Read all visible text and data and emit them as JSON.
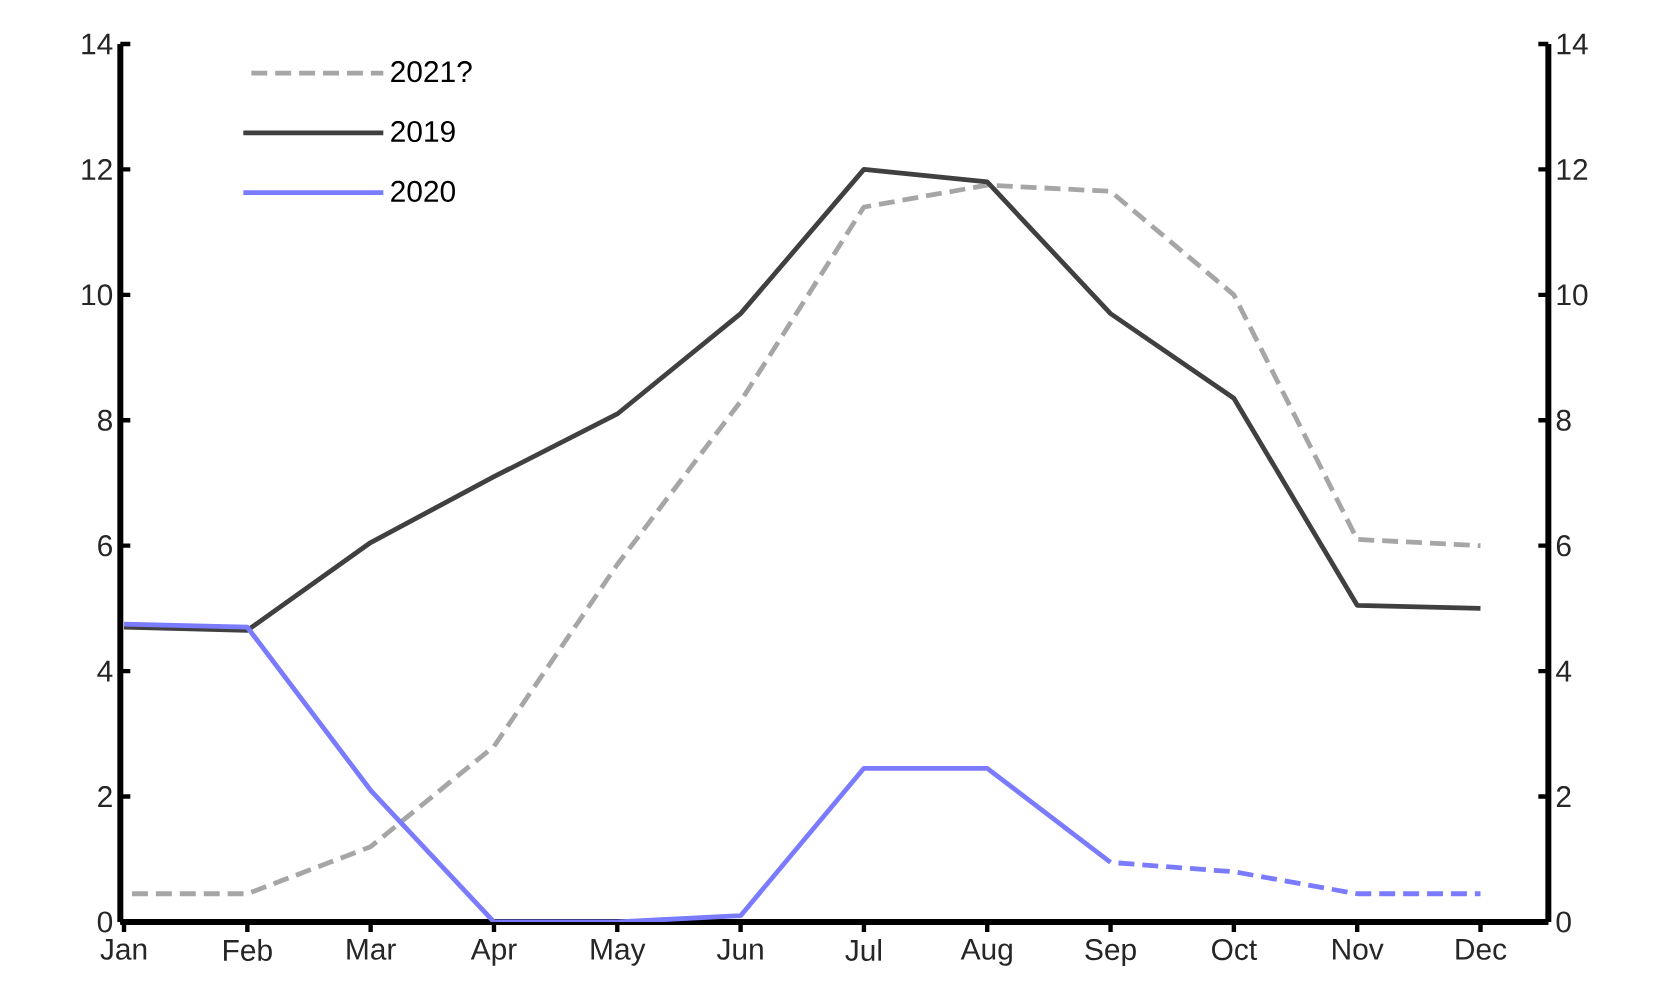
{
  "chart_data": {
    "type": "line",
    "categories": [
      "Jan",
      "Feb",
      "Mar",
      "Apr",
      "May",
      "Jun",
      "Jul",
      "Aug",
      "Sep",
      "Oct",
      "Nov",
      "Dec"
    ],
    "series": [
      {
        "name": "2021?",
        "color": "#a6a6a6",
        "line_style": "dashed",
        "values": [
          0.45,
          0.45,
          1.2,
          2.8,
          5.7,
          8.3,
          11.4,
          11.75,
          11.65,
          10.0,
          6.1,
          6.0
        ]
      },
      {
        "name": "2019",
        "color": "#404040",
        "line_style": "solid",
        "values": [
          4.7,
          4.65,
          6.05,
          7.1,
          8.1,
          9.7,
          12.0,
          11.8,
          9.7,
          8.35,
          5.05,
          5.0
        ]
      },
      {
        "name": "2020",
        "color": "#7b7bff",
        "line_style": "solid",
        "values": [
          4.75,
          4.7,
          2.1,
          0,
          0,
          0.1,
          2.45,
          2.45,
          0.95,
          null,
          null,
          null
        ]
      },
      {
        "color": "#7b7bff",
        "line_style": "dashed",
        "values": [
          null,
          null,
          null,
          null,
          null,
          null,
          null,
          null,
          0.95,
          0.8,
          0.45,
          0.45
        ]
      }
    ],
    "ylim": [
      0,
      14
    ],
    "yticks": [
      0,
      2,
      4,
      6,
      8,
      10,
      12,
      14
    ],
    "y2lim": [
      0,
      14
    ],
    "y2ticks": [
      0,
      2,
      4,
      6,
      8,
      10,
      12,
      14
    ],
    "grid": false,
    "legend": "top left",
    "marker": "none"
  }
}
